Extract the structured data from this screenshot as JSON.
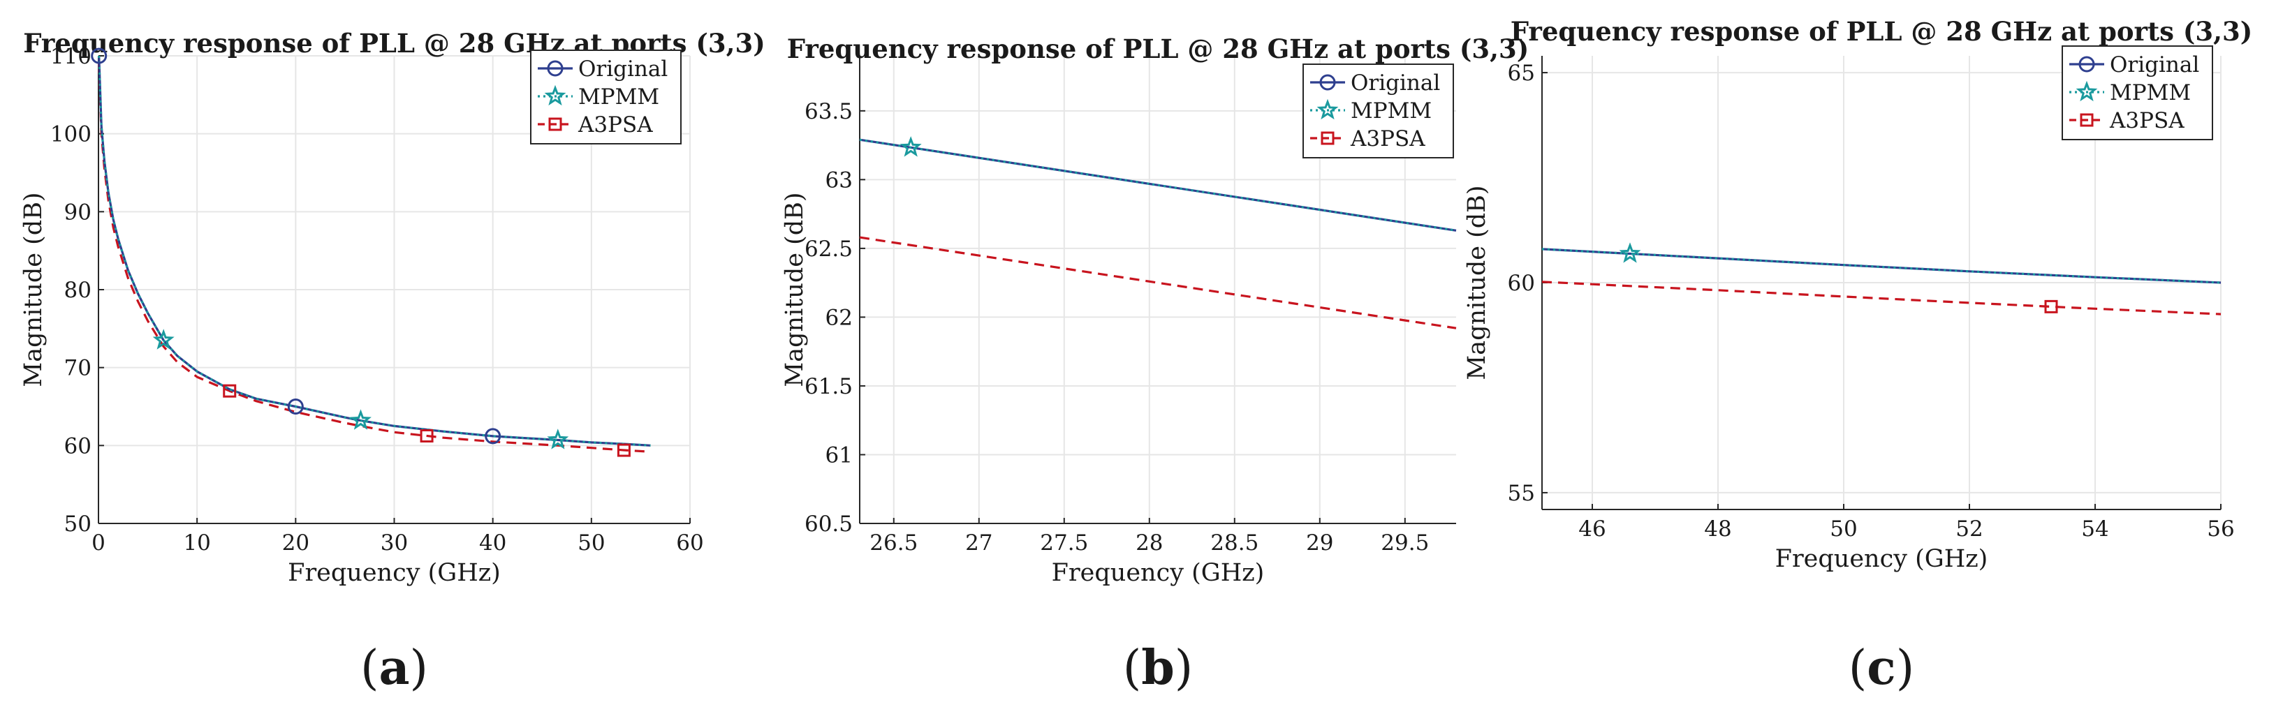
{
  "figure": {
    "panels": [
      {
        "caption_letter": "a"
      },
      {
        "caption_letter": "b"
      },
      {
        "caption_letter": "c"
      }
    ]
  },
  "colors": {
    "original": "#2e3f8f",
    "mpmm": "#1a9a9e",
    "a3psa": "#c8141e",
    "grid": "#e6e6e6",
    "axis": "#262626"
  },
  "chart_data": [
    {
      "type": "line",
      "title": "Frequency response of PLL @ 28 GHz at ports (3,3)",
      "xlabel": "Frequency (GHz)",
      "ylabel": "Magnitude (dB)",
      "xlim": [
        0,
        60
      ],
      "ylim": [
        50,
        110
      ],
      "xticks": [
        0,
        10,
        20,
        30,
        40,
        50,
        60
      ],
      "xtick_labels": [
        "0",
        "10",
        "20",
        "30",
        "40",
        "50",
        "60"
      ],
      "yticks": [
        50,
        60,
        70,
        80,
        90,
        100,
        110
      ],
      "ytick_labels": [
        "50",
        "60",
        "70",
        "80",
        "90",
        "100",
        "110"
      ],
      "grid": true,
      "legend_position": "top-right",
      "series": [
        {
          "name": "Original",
          "style": "solid",
          "marker": "circle",
          "x": [
            0.05,
            0.3,
            0.6,
            1,
            1.5,
            2,
            3,
            4,
            5,
            6.6,
            8,
            10,
            13.3,
            16,
            20,
            25,
            26.6,
            30,
            35,
            40,
            46.6,
            50,
            53.3,
            56
          ],
          "y": [
            110,
            101,
            96.5,
            92.5,
            89,
            86.5,
            82.5,
            79.5,
            77,
            73.5,
            71.5,
            69.5,
            67.2,
            66,
            65,
            63.6,
            63.2,
            62.5,
            61.8,
            61.2,
            60.7,
            60.4,
            60.2,
            60
          ],
          "markers_x": [
            0.05,
            20,
            40
          ]
        },
        {
          "name": "MPMM",
          "style": "dotted",
          "marker": "star",
          "x": [
            0.05,
            0.3,
            0.6,
            1,
            1.5,
            2,
            3,
            4,
            5,
            6.6,
            8,
            10,
            13.3,
            16,
            20,
            25,
            26.6,
            30,
            35,
            40,
            46.6,
            50,
            53.3,
            56
          ],
          "y": [
            110,
            101,
            96.5,
            92.5,
            89,
            86.5,
            82.5,
            79.5,
            77,
            73.5,
            71.5,
            69.5,
            67.2,
            66,
            65,
            63.6,
            63.2,
            62.5,
            61.8,
            61.2,
            60.7,
            60.4,
            60.2,
            60
          ],
          "markers_x": [
            6.6,
            26.6,
            46.6
          ]
        },
        {
          "name": "A3PSA",
          "style": "dashed",
          "marker": "square",
          "x": [
            0.05,
            0.3,
            0.6,
            1,
            1.5,
            2,
            3,
            4,
            5,
            6.6,
            8,
            10,
            13.3,
            16,
            20,
            25,
            26.6,
            30,
            35,
            40,
            46.6,
            50,
            53.3,
            56
          ],
          "y": [
            109,
            100,
            95.5,
            91.5,
            88,
            85.5,
            81.5,
            78.5,
            76,
            72.7,
            70.7,
            68.8,
            67,
            65.7,
            64.3,
            62.9,
            62.5,
            61.7,
            61,
            60.5,
            60,
            59.7,
            59.4,
            59.2
          ],
          "markers_x": [
            13.3,
            33.3,
            53.3
          ]
        }
      ]
    },
    {
      "type": "line",
      "title": "Frequency response of PLL @ 28 GHz at ports (3,3)",
      "xlabel": "Frequency (GHz)",
      "ylabel": "Magnitude (dB)",
      "xlim": [
        26.3,
        29.8
      ],
      "ylim": [
        60.5,
        63.9
      ],
      "xticks": [
        26.5,
        27,
        27.5,
        28,
        28.5,
        29,
        29.5
      ],
      "xtick_labels": [
        "26.5",
        "27",
        "27.5",
        "28",
        "28.5",
        "29",
        "29.5"
      ],
      "yticks": [
        60.5,
        61,
        61.5,
        62,
        62.5,
        63,
        63.5
      ],
      "ytick_labels": [
        "60.5",
        "61",
        "61.5",
        "62",
        "62.5",
        "63",
        "63.5"
      ],
      "grid": true,
      "legend_position": "top-right",
      "series": [
        {
          "name": "Original",
          "style": "solid",
          "marker": "circle",
          "x": [
            26.3,
            29.8
          ],
          "y": [
            63.29,
            62.63
          ],
          "markers_x": []
        },
        {
          "name": "MPMM",
          "style": "dotted",
          "marker": "star",
          "x": [
            26.3,
            29.8
          ],
          "y": [
            63.29,
            62.63
          ],
          "markers_x": [
            26.6
          ]
        },
        {
          "name": "A3PSA",
          "style": "dashed",
          "marker": "square",
          "x": [
            26.3,
            29.8
          ],
          "y": [
            62.58,
            61.92
          ],
          "markers_x": []
        }
      ]
    },
    {
      "type": "line",
      "title": "Frequency response of PLL @ 28 GHz at ports (3,3)",
      "xlabel": "Frequency (GHz)",
      "ylabel": "Magnitude (dB)",
      "xlim": [
        45.2,
        56
      ],
      "ylim": [
        54.6,
        65.4
      ],
      "xticks": [
        46,
        48,
        50,
        52,
        54,
        56
      ],
      "xtick_labels": [
        "46",
        "48",
        "50",
        "52",
        "54",
        "56"
      ],
      "yticks": [
        55,
        60,
        65
      ],
      "ytick_labels": [
        "55",
        "60",
        "65"
      ],
      "grid": true,
      "legend_position": "top-right",
      "series": [
        {
          "name": "Original",
          "style": "solid",
          "marker": "circle",
          "x": [
            45.2,
            48,
            50,
            52,
            54,
            56
          ],
          "y": [
            60.8,
            60.58,
            60.42,
            60.27,
            60.13,
            60
          ],
          "markers_x": []
        },
        {
          "name": "MPMM",
          "style": "dotted",
          "marker": "star",
          "x": [
            45.2,
            48,
            50,
            52,
            54,
            56
          ],
          "y": [
            60.8,
            60.58,
            60.42,
            60.27,
            60.13,
            60
          ],
          "markers_x": [
            46.6
          ]
        },
        {
          "name": "A3PSA",
          "style": "dashed",
          "marker": "square",
          "x": [
            45.2,
            48,
            50,
            52,
            54,
            56
          ],
          "y": [
            60.02,
            59.82,
            59.67,
            59.52,
            59.38,
            59.25
          ],
          "markers_x": [
            53.3
          ]
        }
      ]
    }
  ]
}
